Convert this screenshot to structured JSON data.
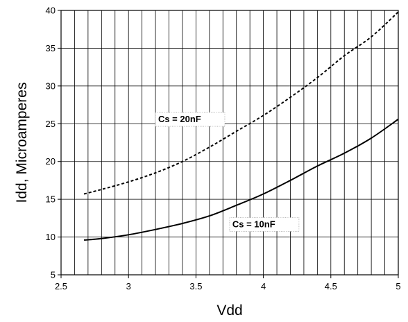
{
  "chart_data": {
    "type": "line",
    "title": "",
    "xlabel": "Vdd",
    "ylabel": "Idd, Microamperes",
    "xlim": [
      2.5,
      5
    ],
    "ylim": [
      5,
      40
    ],
    "x_ticks": [
      2.5,
      3,
      3.5,
      4,
      4.5,
      5
    ],
    "x_tick_labels": [
      "2.5",
      "3",
      "3.5",
      "4",
      "4.5",
      "5"
    ],
    "y_ticks": [
      5,
      10,
      15,
      20,
      25,
      30,
      35,
      40
    ],
    "y_tick_labels": [
      "5",
      "10",
      "15",
      "20",
      "25",
      "30",
      "35",
      "40"
    ],
    "x_minor_gridline_step": 0.1,
    "grid": true,
    "legend": "none",
    "series": [
      {
        "name": "Cs = 20nF",
        "line_style": "dashed",
        "color": "#000000",
        "x": [
          2.67,
          2.8,
          3.0,
          3.2,
          3.4,
          3.6,
          3.8,
          4.0,
          4.2,
          4.4,
          4.6,
          4.8,
          5.0
        ],
        "y": [
          15.7,
          16.3,
          17.3,
          18.5,
          20.0,
          21.9,
          24.0,
          26.1,
          28.5,
          31.1,
          34.0,
          36.5,
          39.8
        ]
      },
      {
        "name": "Cs = 10nF",
        "line_style": "solid",
        "color": "#000000",
        "x": [
          2.67,
          2.8,
          3.0,
          3.2,
          3.4,
          3.6,
          3.8,
          4.0,
          4.2,
          4.4,
          4.6,
          4.8,
          5.0
        ],
        "y": [
          9.6,
          9.8,
          10.3,
          11.0,
          11.8,
          12.8,
          14.2,
          15.7,
          17.5,
          19.4,
          21.1,
          23.1,
          25.6
        ]
      }
    ],
    "annotations": [
      {
        "text": "Cs = 20nF",
        "series": 0
      },
      {
        "text": "Cs = 10nF",
        "series": 1
      }
    ]
  }
}
